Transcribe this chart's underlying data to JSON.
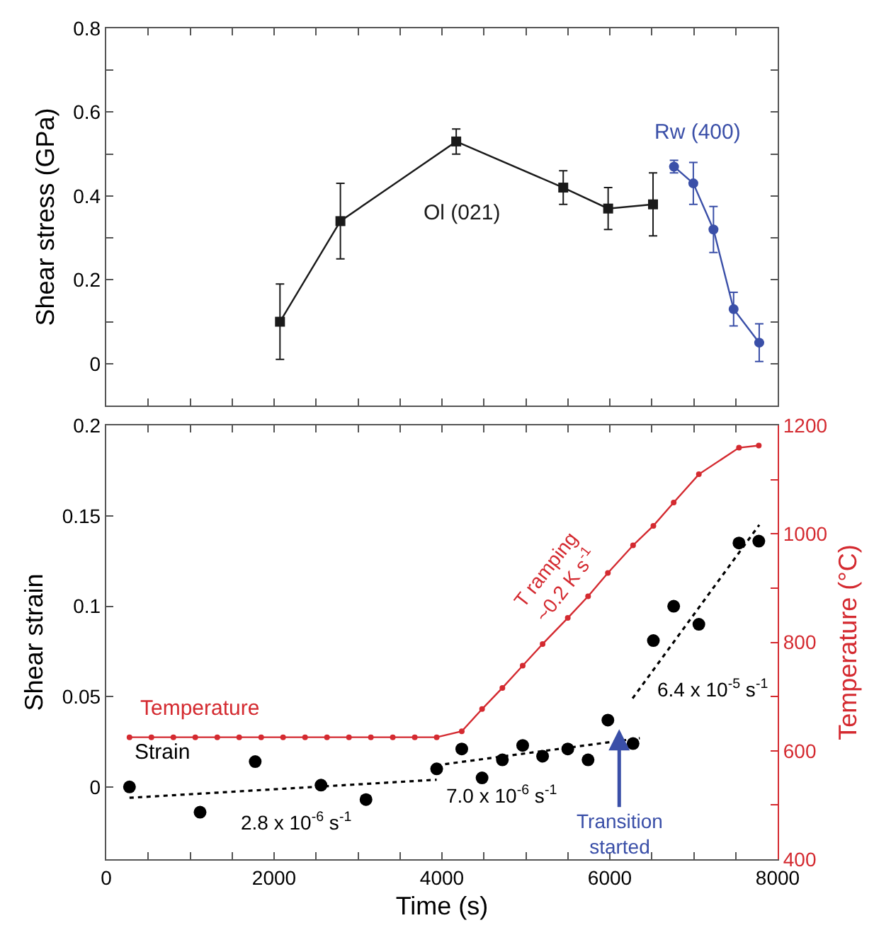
{
  "chart_data": [
    {
      "type": "line",
      "ylabel": "Shear stress (GPa)",
      "xlim": [
        0,
        8000
      ],
      "ylim": [
        -0.1,
        0.8
      ],
      "xticks": [
        {
          "value": 0,
          "label": null
        },
        {
          "value": 500,
          "label": null
        },
        {
          "value": 1000,
          "label": null
        },
        {
          "value": 1500,
          "label": null
        },
        {
          "value": 2000,
          "label": null
        },
        {
          "value": 2500,
          "label": null
        },
        {
          "value": 3000,
          "label": null
        },
        {
          "value": 3500,
          "label": null
        },
        {
          "value": 4000,
          "label": null
        },
        {
          "value": 4500,
          "label": null
        },
        {
          "value": 5000,
          "label": null
        },
        {
          "value": 5500,
          "label": null
        },
        {
          "value": 6000,
          "label": null
        },
        {
          "value": 6500,
          "label": null
        },
        {
          "value": 7000,
          "label": null
        },
        {
          "value": 7500,
          "label": null
        },
        {
          "value": 8000,
          "label": null
        }
      ],
      "yticks": [
        0,
        {
          "value": 0.1,
          "label": null
        },
        0.2,
        {
          "value": 0.3,
          "label": null
        },
        0.4,
        {
          "value": 0.5,
          "label": null
        },
        0.6,
        {
          "value": 0.7,
          "label": null
        },
        0.8
      ],
      "tick_labels": "y",
      "series": [
        {
          "name": "Ol (021)",
          "color": "#1a1a1a",
          "marker": "square",
          "x": [
            2070,
            2790,
            4170,
            5445,
            5980,
            6515
          ],
          "values": [
            0.1,
            0.34,
            0.53,
            0.42,
            0.37,
            0.38
          ],
          "errors": [
            0.09,
            0.09,
            0.03,
            0.04,
            0.05,
            0.075
          ]
        },
        {
          "name": "Rw (400)",
          "color": "#3a4fa8",
          "marker": "circle",
          "x": [
            6765,
            6995,
            7235,
            7475,
            7780
          ],
          "values": [
            0.47,
            0.43,
            0.32,
            0.13,
            0.05
          ],
          "errors": [
            0.015,
            0.05,
            0.055,
            0.04,
            0.045
          ]
        }
      ]
    },
    {
      "type": "line",
      "xlabel": "Time (s)",
      "ylabel": "Shear strain",
      "y2label": "Temperature (°C)",
      "xlim": [
        0,
        8000
      ],
      "ylim": [
        -0.04,
        0.2
      ],
      "y2lim": [
        400,
        1200
      ],
      "xticks": [
        0,
        {
          "value": 500,
          "label": null
        },
        {
          "value": 1000,
          "label": null
        },
        {
          "value": 1500,
          "label": null
        },
        2000,
        {
          "value": 2500,
          "label": null
        },
        {
          "value": 3000,
          "label": null
        },
        {
          "value": 3500,
          "label": null
        },
        4000,
        {
          "value": 4500,
          "label": null
        },
        {
          "value": 5000,
          "label": null
        },
        {
          "value": 5500,
          "label": null
        },
        6000,
        {
          "value": 6500,
          "label": null
        },
        {
          "value": 7000,
          "label": null
        },
        {
          "value": 7500,
          "label": null
        },
        8000
      ],
      "yticks": [
        0,
        0.05,
        0.1,
        0.15,
        0.2
      ],
      "y2ticks": [
        400,
        {
          "value": 500,
          "label": null
        },
        600,
        {
          "value": 700,
          "label": null
        },
        800,
        {
          "value": 900,
          "label": null
        },
        1000,
        {
          "value": 1100,
          "label": null
        },
        1200
      ],
      "series": [
        {
          "name": "Temperature",
          "color": "#d42a30",
          "axis": "y2",
          "type": "line",
          "marker": "circle",
          "line_style": "solid",
          "x": [
            277,
            538,
            800,
            1061,
            1323,
            1584,
            1846,
            2107,
            2369,
            2630,
            2892,
            3153,
            3414,
            3676,
            3937,
            4236,
            4478,
            4720,
            4962,
            5199,
            5499,
            5741,
            5977,
            6277,
            6519,
            6761,
            7061,
            7539,
            7775
          ],
          "values": [
            625,
            625,
            625,
            625,
            625,
            625,
            625,
            625,
            625,
            625,
            625,
            625,
            625,
            625,
            625,
            636,
            677,
            716,
            757,
            797,
            845,
            885,
            928,
            979,
            1015,
            1058,
            1110,
            1159,
            1163
          ]
        },
        {
          "name": "Strain",
          "color": "#000000",
          "type": "scatter",
          "marker": "circle",
          "x": [
            277,
            1118,
            1775,
            2559,
            3095,
            3937,
            4236,
            4478,
            4720,
            4962,
            5199,
            5499,
            5741,
            5977,
            6277,
            6519,
            6761,
            7061,
            7539,
            7775
          ],
          "values": [
            0.0,
            -0.014,
            0.014,
            0.001,
            -0.007,
            0.01,
            0.021,
            0.005,
            0.015,
            0.023,
            0.017,
            0.021,
            0.015,
            0.037,
            0.024,
            0.081,
            0.1,
            0.09,
            0.135,
            0.136
          ]
        },
        {
          "color": "#000000",
          "type": "line",
          "marker": "none",
          "line_style": "dotted",
          "x": [
            277,
            3937
          ],
          "values": [
            -0.006,
            0.004
          ]
        },
        {
          "color": "#000000",
          "type": "line",
          "marker": "none",
          "line_style": "dotted",
          "x": [
            3937,
            6357
          ],
          "values": [
            0.012,
            0.027
          ]
        },
        {
          "color": "#000000",
          "type": "line",
          "marker": "none",
          "line_style": "dotted",
          "x": [
            6271,
            7781
          ],
          "values": [
            0.049,
            0.145
          ]
        }
      ],
      "annotations": [
        "2.8 x 10$^{-6}$ s$^{-1}$",
        "7.0 x 10$^{-6}$ s$^{-1}$",
        "6.4 x 10$^{-5}$ s$^{-1}$",
        "T ramping\n~0.2 K s$^{-1}$",
        "Transition\nstarted"
      ]
    }
  ]
}
